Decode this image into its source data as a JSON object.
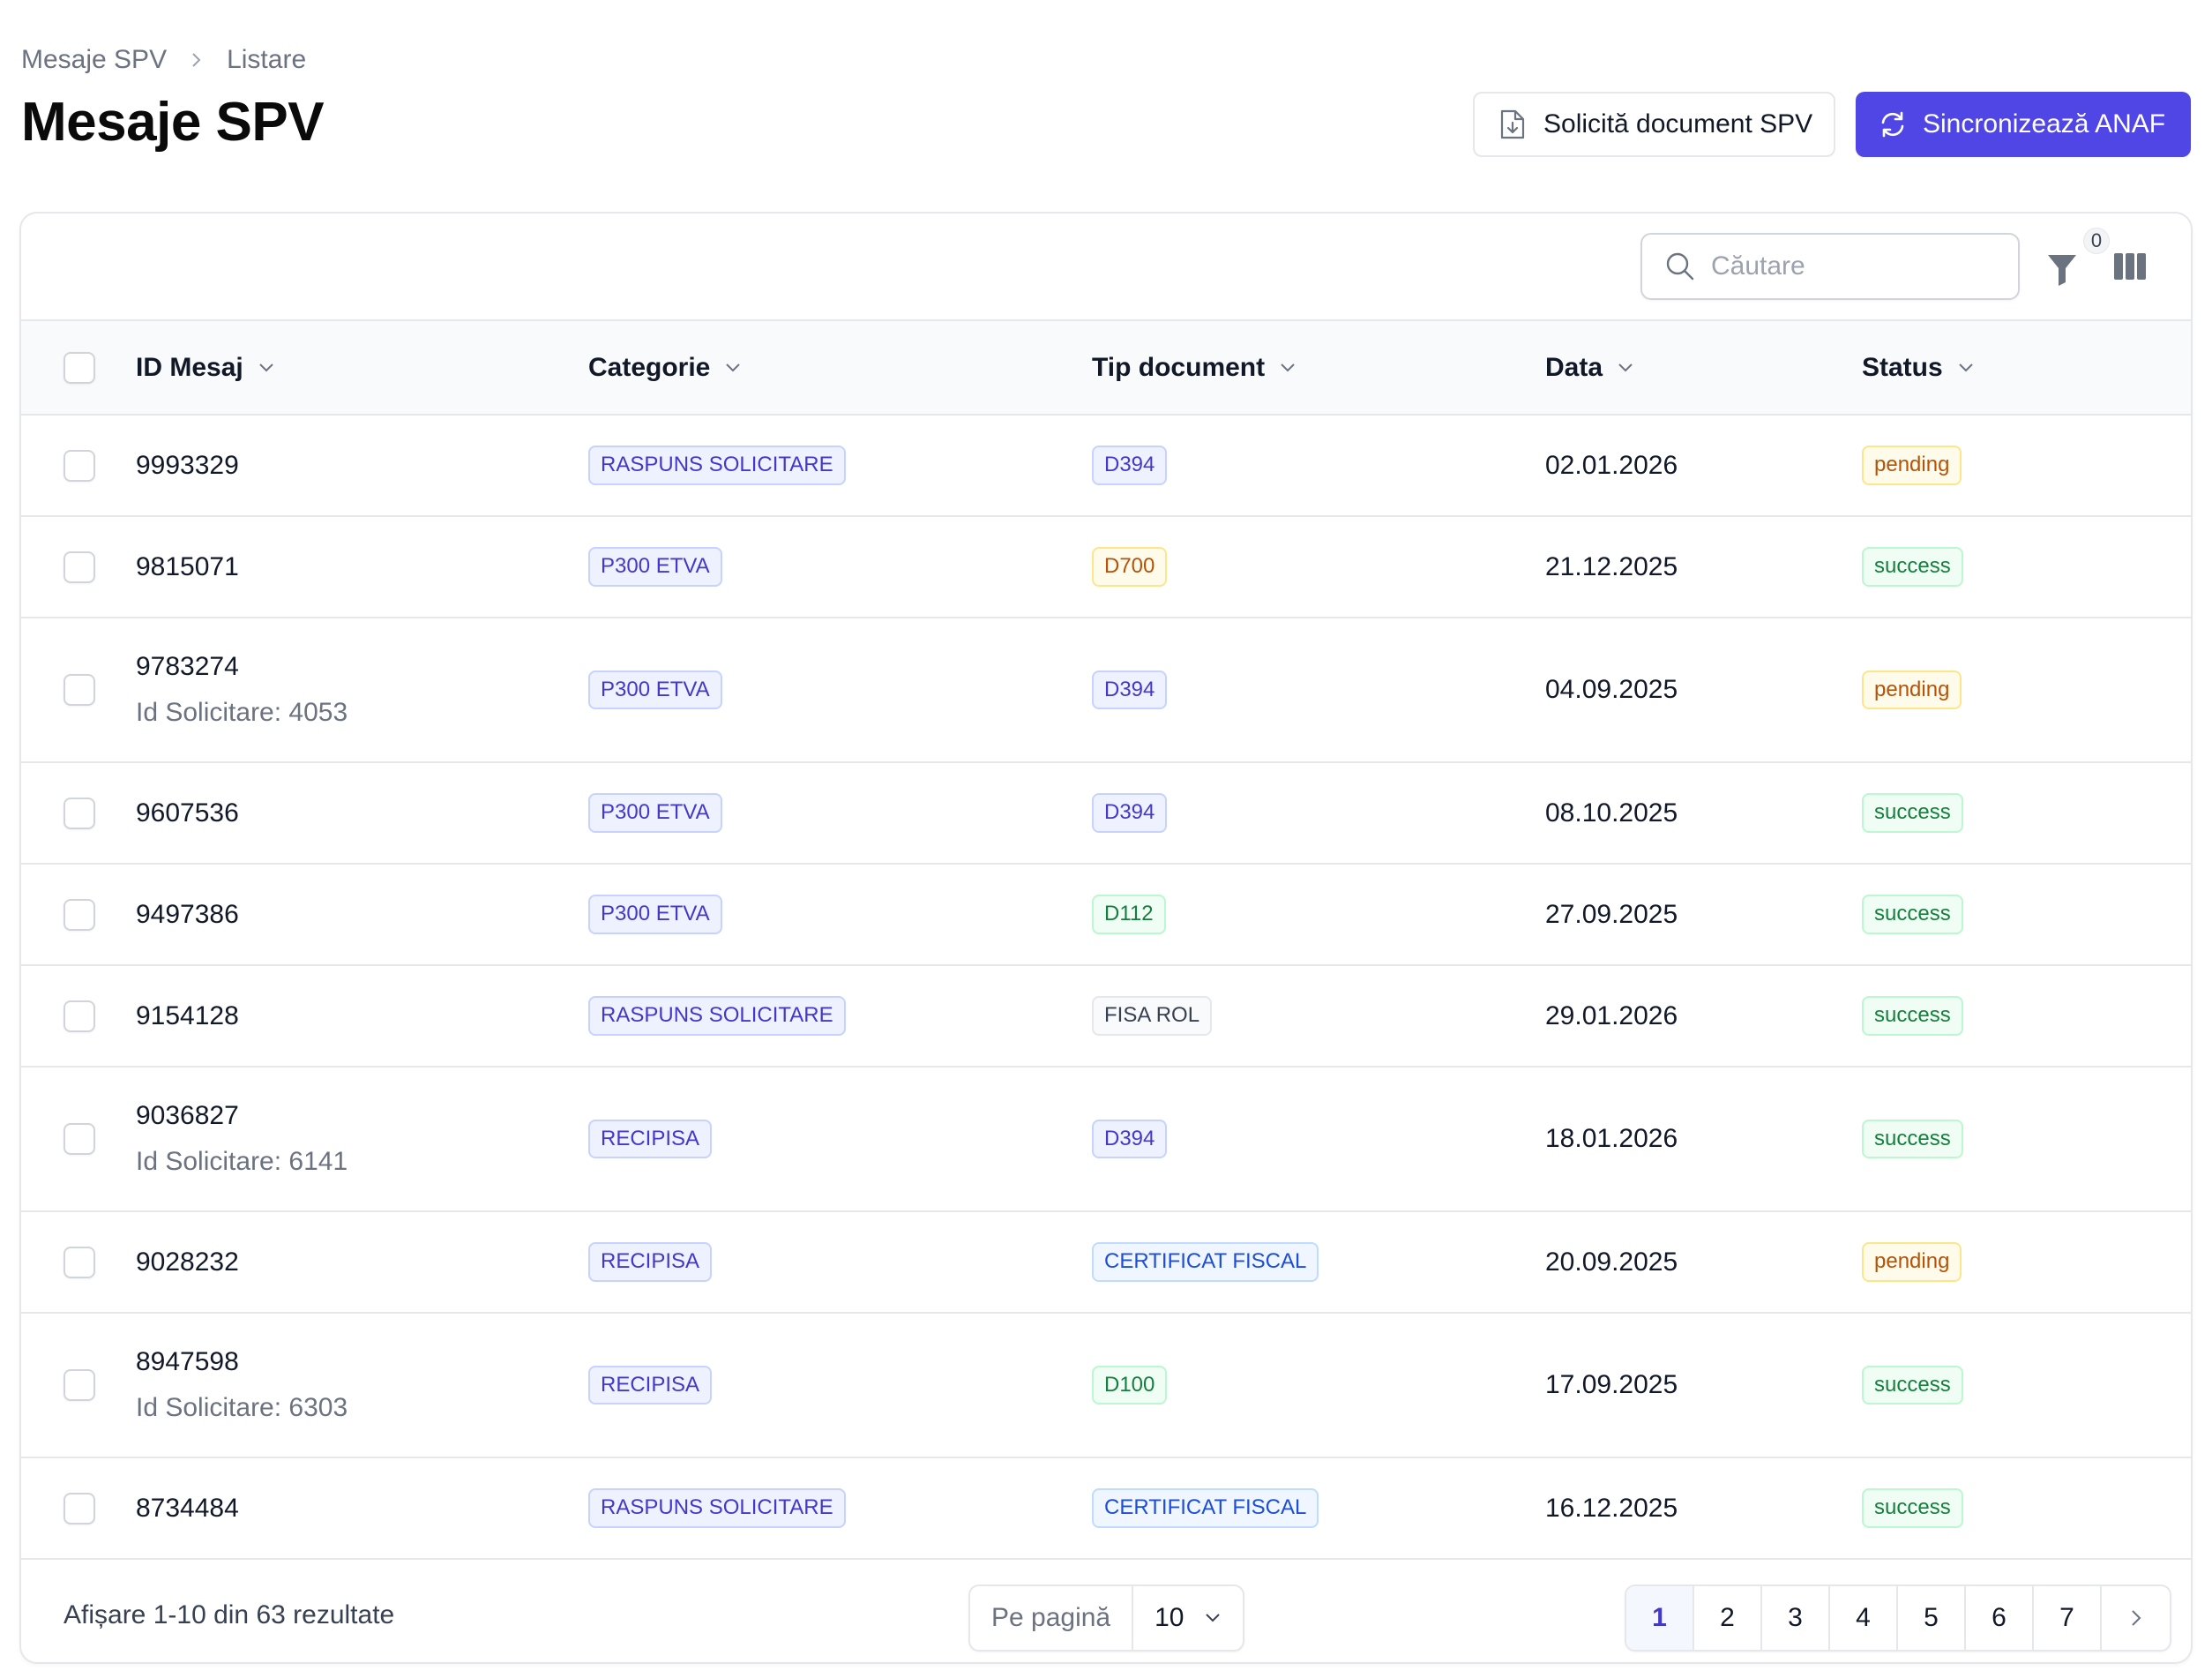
{
  "breadcrumb": {
    "root": "Mesaje SPV",
    "current": "Listare"
  },
  "title": "Mesaje SPV",
  "actions": {
    "request_doc": "Solicită document SPV",
    "sync": "Sincronizează ANAF"
  },
  "toolbar": {
    "search_placeholder": "Căutare",
    "filter_count": "0"
  },
  "columns": {
    "id": "ID Mesaj",
    "category": "Categorie",
    "doc_type": "Tip document",
    "date": "Data",
    "status": "Status"
  },
  "rows": [
    {
      "id": "9993329",
      "sub": "",
      "category": "RASPUNS SOLICITARE",
      "doc_type": "D394",
      "date": "02.01.2026",
      "status": "pending"
    },
    {
      "id": "9815071",
      "sub": "",
      "category": "P300 ETVA",
      "doc_type": "D700",
      "date": "21.12.2025",
      "status": "success"
    },
    {
      "id": "9783274",
      "sub": "Id Solicitare: 4053",
      "category": "P300 ETVA",
      "doc_type": "D394",
      "date": "04.09.2025",
      "status": "pending"
    },
    {
      "id": "9607536",
      "sub": "",
      "category": "P300 ETVA",
      "doc_type": "D394",
      "date": "08.10.2025",
      "status": "success"
    },
    {
      "id": "9497386",
      "sub": "",
      "category": "P300 ETVA",
      "doc_type": "D112",
      "date": "27.09.2025",
      "status": "success"
    },
    {
      "id": "9154128",
      "sub": "",
      "category": "RASPUNS SOLICITARE",
      "doc_type": "FISA ROL",
      "date": "29.01.2026",
      "status": "success"
    },
    {
      "id": "9036827",
      "sub": "Id Solicitare: 6141",
      "category": "RECIPISA",
      "doc_type": "D394",
      "date": "18.01.2026",
      "status": "success"
    },
    {
      "id": "9028232",
      "sub": "",
      "category": "RECIPISA",
      "doc_type": "CERTIFICAT FISCAL",
      "date": "20.09.2025",
      "status": "pending"
    },
    {
      "id": "8947598",
      "sub": "Id Solicitare: 6303",
      "category": "RECIPISA",
      "doc_type": "D100",
      "date": "17.09.2025",
      "status": "success"
    },
    {
      "id": "8734484",
      "sub": "",
      "category": "RASPUNS SOLICITARE",
      "doc_type": "CERTIFICAT FISCAL",
      "date": "16.12.2025",
      "status": "success"
    }
  ],
  "badge_colors": {
    "D394": "indigo",
    "D700": "amber",
    "D112": "green",
    "FISA ROL": "gray",
    "CERTIFICAT FISCAL": "blue",
    "D100": "green",
    "pending": "amber",
    "success": "green"
  },
  "footer": {
    "summary": "Afișare 1-10 din 63 rezultate",
    "per_page_label": "Pe pagină",
    "per_page_value": "10",
    "pages": [
      "1",
      "2",
      "3",
      "4",
      "5",
      "6",
      "7"
    ],
    "active_page": "1"
  },
  "colors": {
    "primary": "#4f46e5"
  }
}
